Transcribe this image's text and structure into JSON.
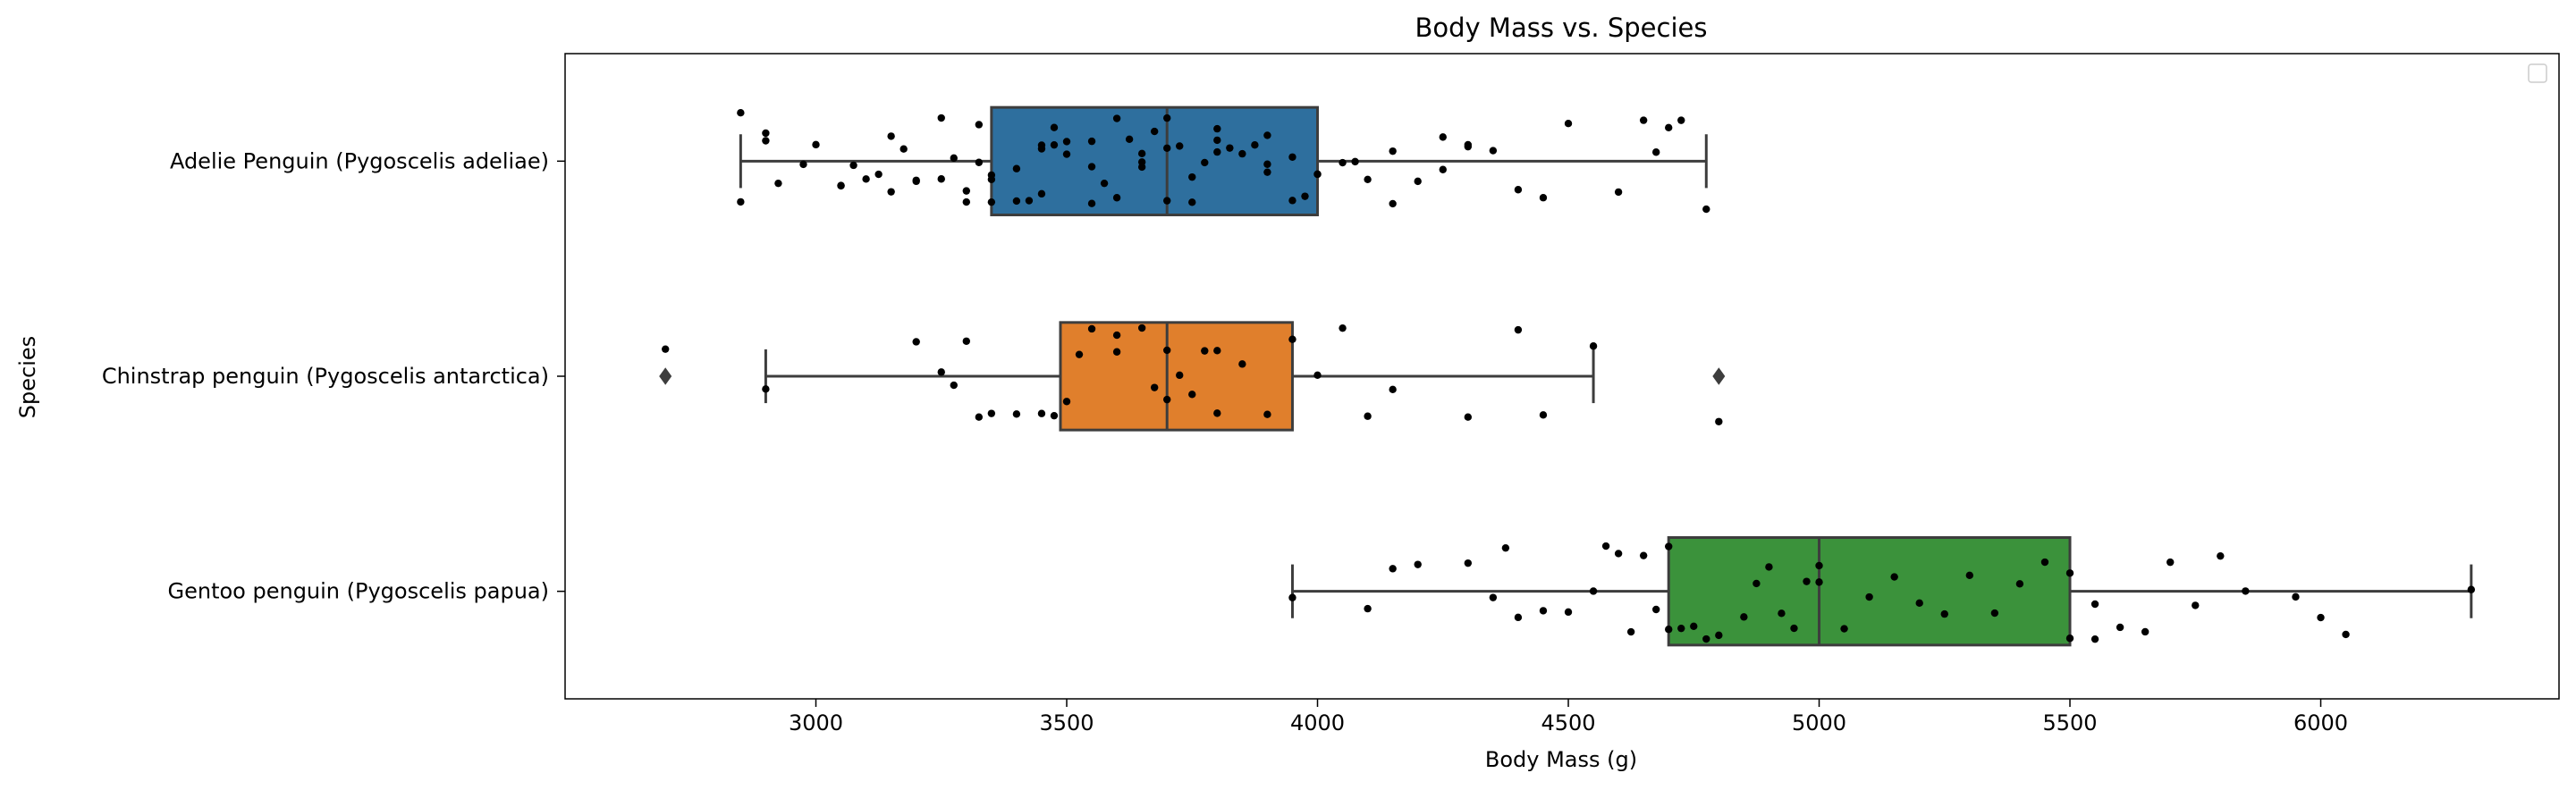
{
  "chart_data": {
    "type": "box",
    "orientation": "horizontal",
    "title": "Body Mass vs. Species",
    "xlabel": "Body Mass (g)",
    "ylabel": "Species",
    "xlim": [
      2500,
      6475
    ],
    "xticks": [
      3000,
      3500,
      4000,
      4500,
      5000,
      5500,
      6000
    ],
    "grid": false,
    "legend": {
      "placement": "top-right",
      "entries": []
    },
    "categories": [
      "Adelie Penguin (Pygoscelis adeliae)",
      "Chinstrap penguin (Pygoscelis antarctica)",
      "Gentoo penguin (Pygoscelis papua)"
    ],
    "colors": [
      "#2e6f9e",
      "#e07f2c",
      "#3b923b"
    ],
    "boxes": [
      {
        "whisker_low": 2850,
        "q1": 3350,
        "median": 3700,
        "q3": 4000,
        "whisker_high": 4775,
        "outliers": []
      },
      {
        "whisker_low": 2900,
        "q1": 3487.5,
        "median": 3700,
        "q3": 3950,
        "whisker_high": 4550,
        "outliers": [
          2700,
          4800
        ]
      },
      {
        "whisker_low": 3950,
        "q1": 4700,
        "median": 5000,
        "q3": 5500,
        "whisker_high": 6300,
        "outliers": []
      }
    ],
    "points": [
      [
        2850,
        2850,
        2900,
        2900,
        2925,
        2975,
        3000,
        3050,
        3050,
        3075,
        3100,
        3125,
        3150,
        3150,
        3175,
        3200,
        3200,
        3250,
        3250,
        3275,
        3300,
        3300,
        3325,
        3325,
        3350,
        3350,
        3350,
        3400,
        3400,
        3425,
        3450,
        3450,
        3450,
        3475,
        3475,
        3500,
        3500,
        3550,
        3550,
        3550,
        3575,
        3600,
        3600,
        3625,
        3650,
        3650,
        3650,
        3675,
        3700,
        3700,
        3700,
        3725,
        3750,
        3750,
        3775,
        3800,
        3800,
        3800,
        3825,
        3850,
        3875,
        3900,
        3900,
        3900,
        3950,
        3950,
        3975,
        4000,
        4000,
        4050,
        4075,
        4100,
        4150,
        4150,
        4200,
        4250,
        4250,
        4300,
        4300,
        4350,
        4400,
        4450,
        4500,
        4600,
        4650,
        4675,
        4700,
        4725,
        4775
      ],
      [
        2700,
        2900,
        3200,
        3250,
        3275,
        3300,
        3325,
        3350,
        3400,
        3450,
        3475,
        3500,
        3525,
        3550,
        3600,
        3600,
        3650,
        3675,
        3700,
        3700,
        3725,
        3750,
        3775,
        3800,
        3800,
        3850,
        3900,
        3950,
        4000,
        4050,
        4100,
        4150,
        4300,
        4400,
        4450,
        4550,
        4800
      ],
      [
        3950,
        4100,
        4150,
        4200,
        4300,
        4350,
        4375,
        4400,
        4450,
        4500,
        4550,
        4575,
        4600,
        4625,
        4650,
        4675,
        4700,
        4700,
        4725,
        4750,
        4775,
        4800,
        4850,
        4875,
        4900,
        4925,
        4950,
        4975,
        5000,
        5000,
        5050,
        5100,
        5150,
        5200,
        5250,
        5300,
        5350,
        5400,
        5450,
        5500,
        5500,
        5550,
        5550,
        5600,
        5650,
        5700,
        5750,
        5800,
        5850,
        5950,
        6000,
        6050,
        6300
      ]
    ]
  }
}
